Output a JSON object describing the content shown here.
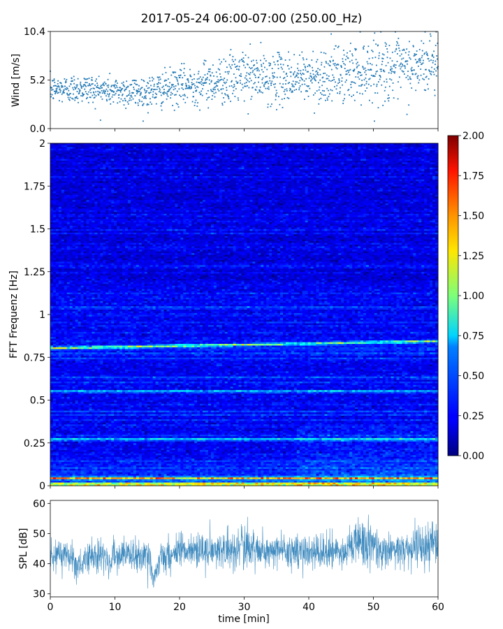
{
  "title": "2017-05-24 06:00-07:00 (250.00_Hz)",
  "chart_data": [
    {
      "type": "scatter",
      "ylabel": "Wind [m/s]",
      "xlim": [
        0,
        60
      ],
      "ylim": [
        0.0,
        10.4
      ],
      "yticks": [
        "0.0",
        "5.2",
        "10.4"
      ],
      "color": "#1f77b4",
      "trend": {
        "x": [
          0,
          5,
          10,
          15,
          20,
          25,
          30,
          35,
          40,
          45,
          50,
          55,
          60
        ],
        "mean": [
          4.2,
          4.3,
          4.0,
          3.9,
          4.5,
          5.0,
          5.6,
          5.3,
          5.5,
          5.8,
          6.5,
          6.3,
          7.2
        ],
        "spread": [
          0.7,
          0.8,
          0.8,
          0.9,
          1.0,
          1.2,
          1.4,
          1.3,
          1.4,
          1.5,
          1.7,
          1.6,
          1.7
        ]
      }
    },
    {
      "type": "heatmap",
      "ylabel": "FFT Frequenz [Hz]",
      "xlim": [
        0,
        60
      ],
      "ylim": [
        0,
        2
      ],
      "yticks": [
        "0",
        "0.25",
        "0.5",
        "0.75",
        "1",
        "1.25",
        "1.5",
        "1.75",
        "2"
      ],
      "colorbar": {
        "range": [
          0.0,
          2.0
        ],
        "ticks": [
          "0.00",
          "0.25",
          "0.50",
          "0.75",
          "1.00",
          "1.25",
          "1.50",
          "1.75",
          "2.00"
        ],
        "colormap": "jet"
      },
      "bands": [
        {
          "freq_start": 0.8,
          "freq_end": 0.85,
          "time_start": 0,
          "time_end": 60,
          "level": 0.9
        },
        {
          "freq_start": 0.265,
          "freq_end": 0.28,
          "time_start": 0,
          "time_end": 60,
          "level": 0.6
        },
        {
          "freq_start": 0.545,
          "freq_end": 0.56,
          "time_start": 0,
          "time_end": 60,
          "level": 0.5
        },
        {
          "freq_start": 0.01,
          "freq_end": 0.01,
          "time_start": 0,
          "time_end": 60,
          "level": 1.5
        },
        {
          "freq_start": 0.045,
          "freq_end": 0.045,
          "time_start": 0,
          "time_end": 60,
          "level": 1.0
        }
      ],
      "background_level": 0.22
    },
    {
      "type": "area",
      "ylabel": "SPL [dB]",
      "xlabel": "time [min]",
      "xlim": [
        0,
        60
      ],
      "ylim": [
        29,
        61
      ],
      "yticks": [
        "30",
        "40",
        "50",
        "60"
      ],
      "xticks": [
        "0",
        "10",
        "20",
        "30",
        "40",
        "50",
        "60"
      ],
      "color": "#1f77b4",
      "envelope": {
        "x": [
          0,
          3,
          4,
          6,
          8,
          9,
          10,
          12,
          14,
          15,
          16,
          17,
          20,
          25,
          29,
          30,
          33,
          35,
          40,
          45,
          48,
          50,
          52,
          55,
          58,
          60
        ],
        "mean": [
          43,
          43,
          39,
          42,
          44,
          40,
          42,
          43,
          43,
          44,
          35,
          43,
          44,
          44,
          45,
          46,
          44,
          45,
          44,
          44,
          48,
          46,
          44,
          45,
          46,
          47
        ],
        "spread": [
          3.5,
          3.5,
          4,
          4,
          4,
          4,
          4,
          4,
          4,
          4,
          4,
          4,
          4,
          4,
          5,
          5,
          4,
          4,
          4,
          4,
          6,
          5,
          4,
          4,
          6,
          5
        ]
      }
    }
  ]
}
